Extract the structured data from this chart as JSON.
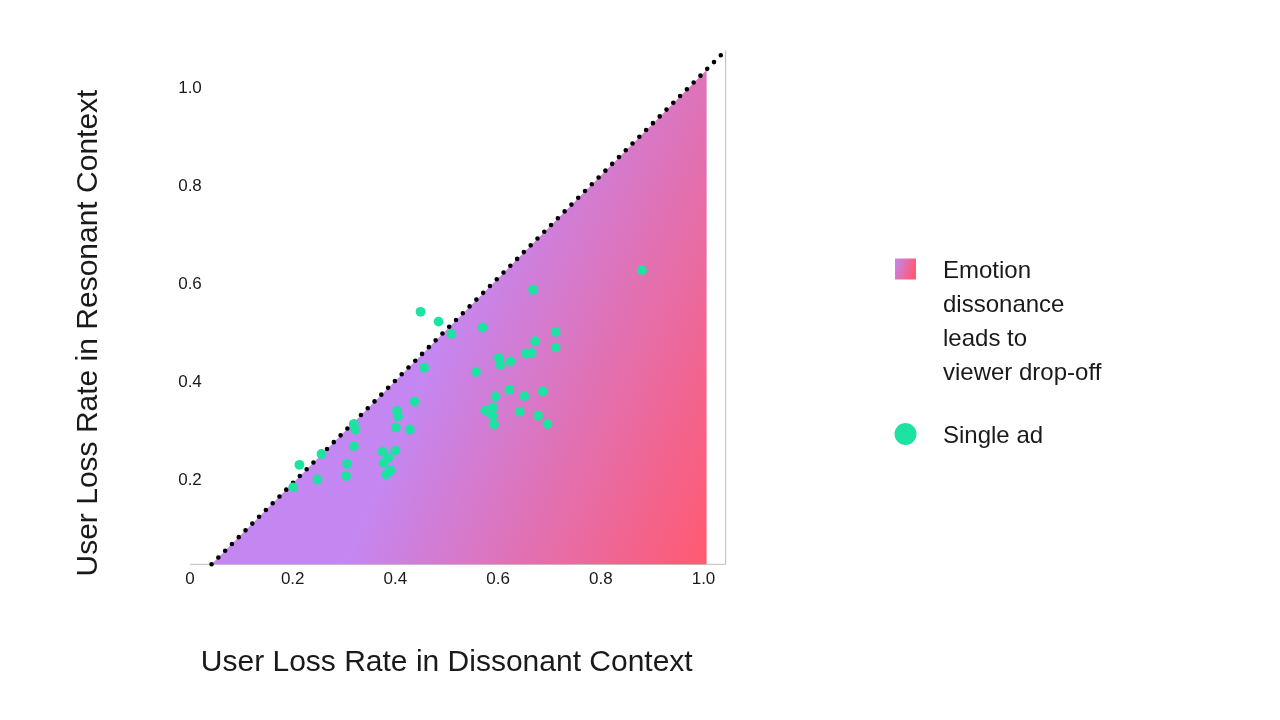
{
  "chart_data": {
    "type": "scatter",
    "xlabel": "User Loss Rate in Dissonant Context",
    "ylabel": "User Loss Rate in Resonant Context",
    "xlim": [
      0,
      1.043
    ],
    "ylim": [
      0.028,
      1.076
    ],
    "xticks": [
      0,
      0.2,
      0.4,
      0.6,
      0.8,
      {
        "value": 1,
        "label": "1.0"
      }
    ],
    "yticks": [
      0.2,
      0.4,
      0.6,
      0.8,
      {
        "value": 1,
        "label": "1.0"
      }
    ],
    "legend": "right",
    "series": [
      {
        "type": "area",
        "name": "Emotion dissonance leads to viewer drop-off",
        "colors": [
          "#c487f2",
          "#ff5a72"
        ],
        "x": [
          0.042,
          1.006
        ],
        "values": [
          0.028,
          1.036
        ]
      },
      {
        "type": "line",
        "color": "#000000",
        "line_style": "dotted",
        "x": [
          0.042,
          1.043
        ],
        "values": [
          0.028,
          1.076
        ]
      },
      {
        "name": "Single ad",
        "color": "#1de2a2",
        "marker": "circle",
        "x": [
          0.449,
          0.484,
          0.509,
          0.57,
          0.668,
          0.88,
          0.712,
          0.672,
          0.712,
          0.654,
          0.665,
          0.601,
          0.604,
          0.624,
          0.456,
          0.557,
          0.622,
          0.687,
          0.595,
          0.651,
          0.437,
          0.575,
          0.59,
          0.589,
          0.642,
          0.678,
          0.592,
          0.696,
          0.403,
          0.405,
          0.401,
          0.428,
          0.319,
          0.322,
          0.319,
          0.256,
          0.213,
          0.201,
          0.248,
          0.306,
          0.304,
          0.375,
          0.4,
          0.386,
          0.377,
          0.39,
          0.382
        ],
        "values": [
          0.543,
          0.523,
          0.498,
          0.511,
          0.588,
          0.628,
          0.502,
          0.483,
          0.47,
          0.458,
          0.459,
          0.449,
          0.435,
          0.442,
          0.429,
          0.42,
          0.384,
          0.381,
          0.37,
          0.371,
          0.36,
          0.342,
          0.348,
          0.331,
          0.339,
          0.331,
          0.313,
          0.314,
          0.341,
          0.33,
          0.307,
          0.303,
          0.314,
          0.303,
          0.269,
          0.253,
          0.231,
          0.185,
          0.201,
          0.233,
          0.208,
          0.258,
          0.26,
          0.245,
          0.235,
          0.219,
          0.211
        ]
      }
    ]
  }
}
